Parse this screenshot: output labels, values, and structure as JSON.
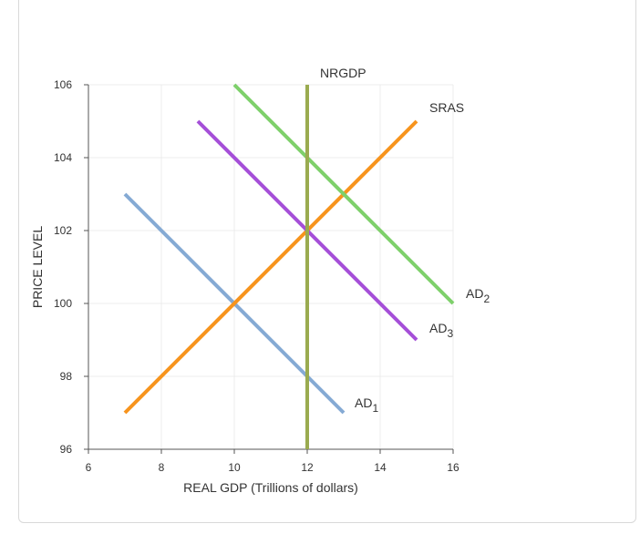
{
  "chart_data": {
    "type": "line",
    "xlabel": "REAL GDP (Trillions of dollars)",
    "ylabel": "PRICE LEVEL",
    "xlim": [
      6,
      16
    ],
    "ylim": [
      96,
      106
    ],
    "xticks": [
      6,
      8,
      10,
      12,
      14,
      16
    ],
    "yticks": [
      96,
      98,
      100,
      102,
      104,
      106
    ],
    "grid": true,
    "series": [
      {
        "name": "AD",
        "subscript": "1",
        "color": "#85aad4",
        "x": [
          7,
          13
        ],
        "y": [
          103,
          97
        ]
      },
      {
        "name": "SRAS",
        "subscript": "",
        "color": "#f7941d",
        "x": [
          7,
          15
        ],
        "y": [
          97,
          105
        ]
      },
      {
        "name": "AD",
        "subscript": "3",
        "color": "#a54fd8",
        "x": [
          9,
          15
        ],
        "y": [
          105,
          99
        ]
      },
      {
        "name": "AD",
        "subscript": "2",
        "color": "#7ed06b",
        "x": [
          10,
          16
        ],
        "y": [
          106,
          100
        ]
      },
      {
        "name": "NRGDP",
        "subscript": "",
        "color": "#9aab50",
        "x": [
          12,
          12
        ],
        "y": [
          96,
          106
        ]
      }
    ]
  }
}
